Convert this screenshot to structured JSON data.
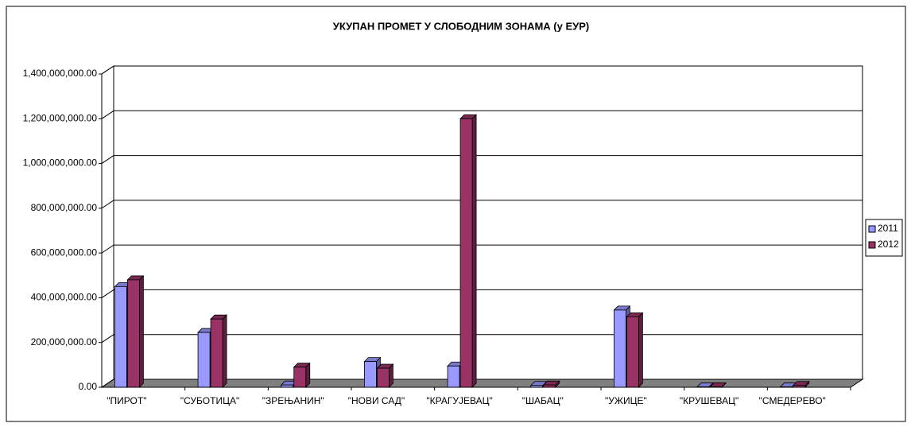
{
  "chart_data": {
    "type": "bar3d",
    "title": "УКУПАН ПРОМЕТ У СЛОБОДНИМ ЗОНАМА (у ЕУР)",
    "categories": [
      "\"ПИРОТ\"",
      "\"СУБОТИЦА\"",
      "\"ЗРЕЊАНИН\"",
      "\"НОВИ САД\"",
      "\"КРАГУЈЕВАЦ\"",
      "\"ШАБАЦ\"",
      "\"УЖИЦЕ\"",
      "\"КРУШЕВАЦ\"",
      "\"СМЕДЕРЕВО\""
    ],
    "series": [
      {
        "name": "2011",
        "color": "#9999ff",
        "values": [
          450000000,
          245000000,
          10000000,
          115000000,
          95000000,
          8000000,
          345000000,
          2000000,
          2000000
        ]
      },
      {
        "name": "2012",
        "color": "#993366",
        "values": [
          480000000,
          305000000,
          90000000,
          85000000,
          1200000000,
          10000000,
          315000000,
          2000000,
          8000000
        ]
      }
    ],
    "ylim": [
      0,
      1400000000
    ],
    "yticks": [
      {
        "value": 0,
        "label": "0.00"
      },
      {
        "value": 200000000,
        "label": "200,000,000.00"
      },
      {
        "value": 400000000,
        "label": "400,000,000.00"
      },
      {
        "value": 600000000,
        "label": "600,000,000.00"
      },
      {
        "value": 800000000,
        "label": "800,000,000.00"
      },
      {
        "value": 1000000000,
        "label": "1,000,000,000.00"
      },
      {
        "value": 1200000000,
        "label": "1,200,000,000.00"
      },
      {
        "value": 1400000000,
        "label": "1,400,000,000.00"
      }
    ],
    "grid": true,
    "legend": "right"
  }
}
